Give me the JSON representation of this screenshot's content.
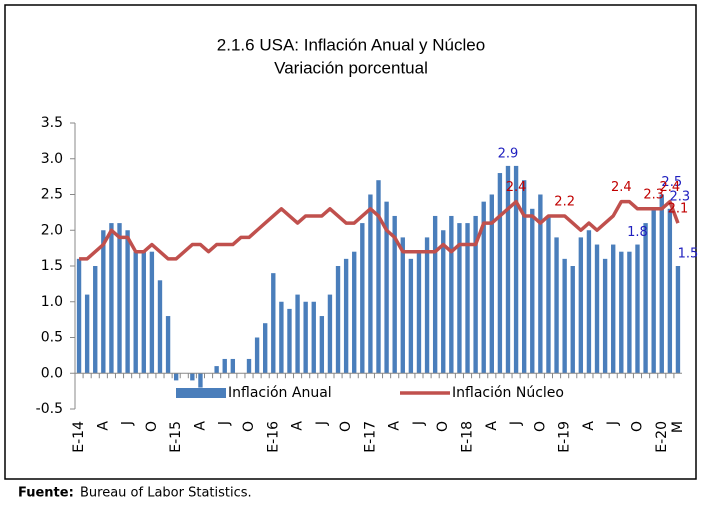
{
  "chart_data": {
    "type": "bar-line",
    "title": "2.1.6  USA: Inflación Anual y Núcleo",
    "subtitle": "Variación porcentual",
    "source_label": "Fuente:",
    "source": "Bureau of Labor Statistics.",
    "categories": [
      "E-14",
      null,
      null,
      "A",
      null,
      null,
      "J",
      null,
      null,
      "O",
      null,
      null,
      "E-15",
      null,
      null,
      "A",
      null,
      null,
      "J",
      null,
      null,
      "O",
      null,
      null,
      "E-16",
      null,
      null,
      "A",
      null,
      null,
      "J",
      null,
      null,
      "O",
      null,
      null,
      "E-17",
      null,
      null,
      "A",
      null,
      null,
      "J",
      null,
      null,
      "O",
      null,
      null,
      "E-18",
      null,
      null,
      "A",
      null,
      null,
      "J",
      null,
      null,
      "O",
      null,
      null,
      "E-19",
      null,
      null,
      "A",
      null,
      null,
      "J",
      null,
      null,
      "O",
      null,
      null,
      "E-20",
      null,
      "M"
    ],
    "series": [
      {
        "name": "Inflación Anual",
        "type": "bar",
        "color": "#4a7ebb",
        "label_color": "#1f1fbf",
        "values": [
          1.6,
          1.1,
          1.5,
          2.0,
          2.1,
          2.1,
          2.0,
          1.7,
          1.7,
          1.7,
          1.3,
          0.8,
          -0.1,
          0.0,
          -0.1,
          -0.2,
          0.0,
          0.1,
          0.2,
          0.2,
          0.0,
          0.2,
          0.5,
          0.7,
          1.4,
          1.0,
          0.9,
          1.1,
          1.0,
          1.0,
          0.8,
          1.1,
          1.5,
          1.6,
          1.7,
          2.1,
          2.5,
          2.7,
          2.4,
          2.2,
          1.9,
          1.6,
          1.7,
          1.9,
          2.2,
          2.0,
          2.2,
          2.1,
          2.1,
          2.2,
          2.4,
          2.5,
          2.8,
          2.9,
          2.9,
          2.7,
          2.3,
          2.5,
          2.2,
          1.9,
          1.6,
          1.5,
          1.9,
          2.0,
          1.8,
          1.6,
          1.8,
          1.7,
          1.7,
          1.8,
          2.1,
          2.3,
          2.5,
          2.3,
          1.5
        ],
        "labeled_points": [
          53,
          69,
          72,
          73,
          74
        ]
      },
      {
        "name": "Inflación Núcleo",
        "type": "line",
        "color": "#c0504d",
        "label_color": "#c00000",
        "values": [
          1.6,
          1.6,
          1.7,
          1.8,
          2.0,
          1.9,
          1.9,
          1.7,
          1.7,
          1.8,
          1.7,
          1.6,
          1.6,
          1.7,
          1.8,
          1.8,
          1.7,
          1.8,
          1.8,
          1.8,
          1.9,
          1.9,
          2.0,
          2.1,
          2.2,
          2.3,
          2.2,
          2.1,
          2.2,
          2.2,
          2.2,
          2.3,
          2.2,
          2.1,
          2.1,
          2.2,
          2.3,
          2.2,
          2.0,
          1.9,
          1.7,
          1.7,
          1.7,
          1.7,
          1.7,
          1.8,
          1.7,
          1.8,
          1.8,
          1.8,
          2.1,
          2.1,
          2.2,
          2.3,
          2.4,
          2.2,
          2.2,
          2.1,
          2.2,
          2.2,
          2.2,
          2.1,
          2.0,
          2.1,
          2.0,
          2.1,
          2.2,
          2.4,
          2.4,
          2.3,
          2.3,
          2.3,
          2.3,
          2.4,
          2.1
        ],
        "labeled_points": [
          54,
          60,
          67,
          71,
          73,
          74
        ]
      }
    ],
    "ylim": [
      -0.5,
      3.5
    ],
    "yticks": [
      -0.5,
      {
        "value": 0,
        "label": "0.0"
      },
      0.5,
      {
        "value": 1,
        "label": "1.0"
      },
      1.5,
      {
        "value": 2,
        "label": "2.0"
      },
      2.5,
      {
        "value": 3,
        "label": "3.0"
      },
      3.5
    ],
    "grid": false,
    "legend": "bottom"
  }
}
